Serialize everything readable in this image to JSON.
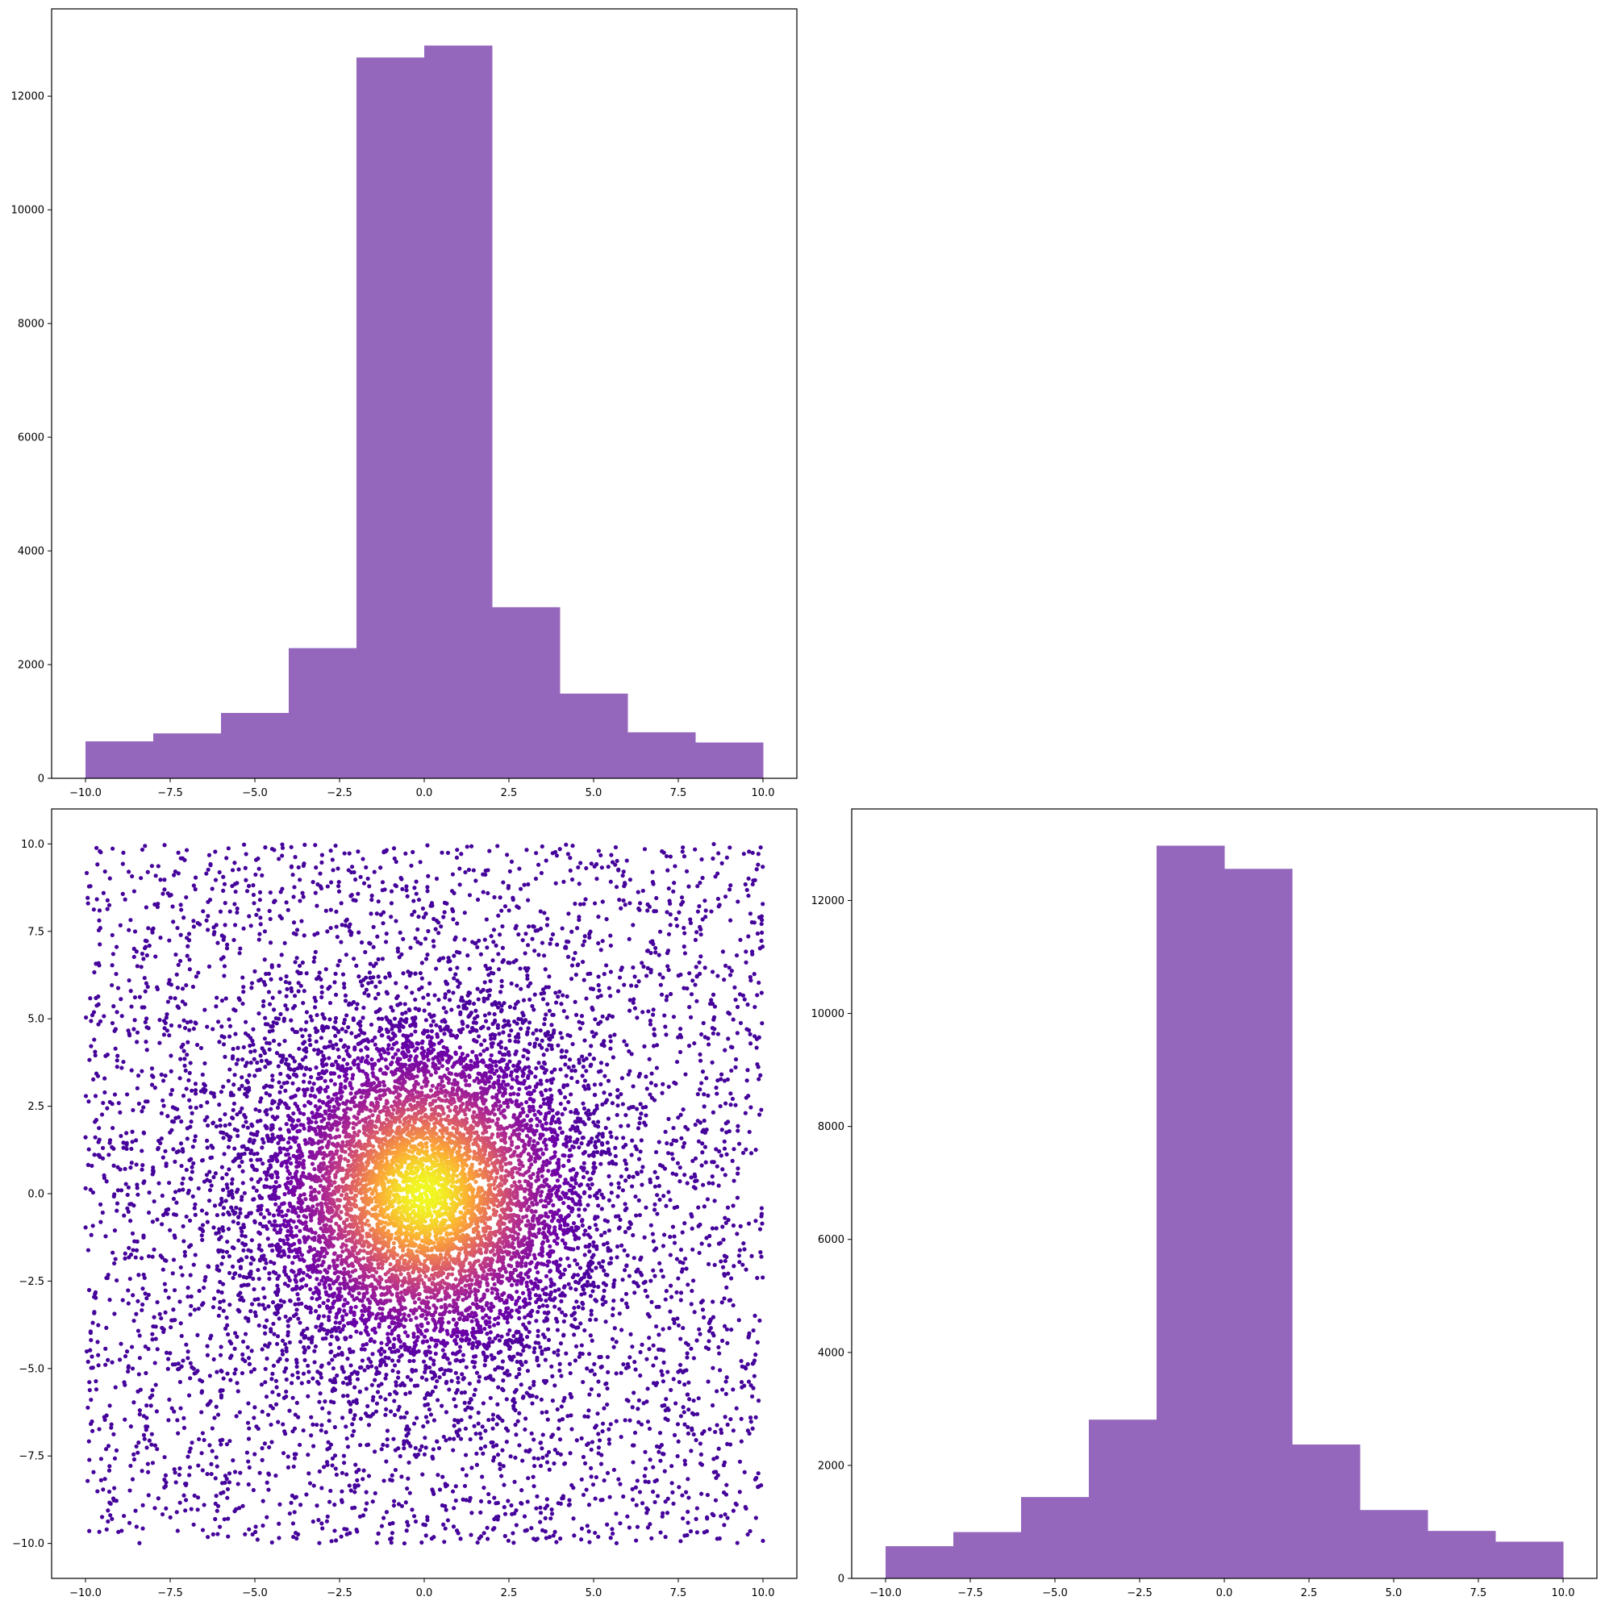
{
  "colors": {
    "bar": "#9467bd",
    "axis": "#000000",
    "background": "#ffffff",
    "colormap": [
      "#0d0887",
      "#6a00a8",
      "#b12a90",
      "#e16462",
      "#fca636",
      "#f0f921"
    ]
  },
  "chart_data": [
    {
      "id": "top-left-histogram",
      "type": "bar",
      "orientation": "vertical",
      "bin_edges": [
        -10,
        -8,
        -6,
        -4,
        -2,
        0,
        2,
        4,
        6,
        8,
        10
      ],
      "values": [
        650,
        790,
        1150,
        2290,
        12680,
        12890,
        3010,
        1490,
        810,
        630
      ],
      "xlim": [
        -11,
        11
      ],
      "ylim": [
        0,
        13535
      ],
      "x_ticks": [
        -10.0,
        -7.5,
        -5.0,
        -2.5,
        0.0,
        2.5,
        5.0,
        7.5,
        10.0
      ],
      "x_tick_labels": [
        "−10.0",
        "−7.5",
        "−5.0",
        "−2.5",
        "0.0",
        "2.5",
        "5.0",
        "7.5",
        "10.0"
      ],
      "y_ticks": [
        0,
        2000,
        4000,
        6000,
        8000,
        10000,
        12000
      ],
      "y_tick_labels": [
        "0",
        "2000",
        "4000",
        "6000",
        "8000",
        "10000",
        "12000"
      ],
      "grid": false
    },
    {
      "id": "bottom-left-scatter",
      "type": "scatter",
      "description_of_distribution": "approx. 10000 points uniform in [-10,10]x[-10,10] mixed with a dense 2-D Gaussian cluster centered at (0,0); points colored by local density (plasma colormap)",
      "xlim": [
        -11,
        11
      ],
      "ylim": [
        -11,
        11
      ],
      "x_ticks": [
        -10.0,
        -7.5,
        -5.0,
        -2.5,
        0.0,
        2.5,
        5.0,
        7.5,
        10.0
      ],
      "x_tick_labels": [
        "−10.0",
        "−7.5",
        "−5.0",
        "−2.5",
        "0.0",
        "2.5",
        "5.0",
        "7.5",
        "10.0"
      ],
      "y_ticks": [
        -10.0,
        -7.5,
        -5.0,
        -2.5,
        0.0,
        2.5,
        5.0,
        7.5,
        10.0
      ],
      "y_tick_labels": [
        "−10.0",
        "−7.5",
        "−5.0",
        "−2.5",
        "0.0",
        "2.5",
        "5.0",
        "7.5",
        "10.0"
      ],
      "grid": false
    },
    {
      "id": "bottom-right-histogram",
      "type": "bar",
      "orientation": "vertical",
      "bin_edges": [
        -10,
        -8,
        -6,
        -4,
        -2,
        0,
        2,
        4,
        6,
        8,
        10
      ],
      "values": [
        570,
        820,
        1440,
        2810,
        12970,
        12560,
        2370,
        1210,
        840,
        650
      ],
      "xlim": [
        -11,
        11
      ],
      "ylim": [
        0,
        13620
      ],
      "x_ticks": [
        -10.0,
        -7.5,
        -5.0,
        -2.5,
        0.0,
        2.5,
        5.0,
        7.5,
        10.0
      ],
      "x_tick_labels": [
        "−10.0",
        "−7.5",
        "−5.0",
        "−2.5",
        "0.0",
        "2.5",
        "5.0",
        "7.5",
        "10.0"
      ],
      "y_ticks": [
        0,
        2000,
        4000,
        6000,
        8000,
        10000,
        12000
      ],
      "y_tick_labels": [
        "0",
        "2000",
        "4000",
        "6000",
        "8000",
        "10000",
        "12000"
      ],
      "grid": false
    }
  ]
}
